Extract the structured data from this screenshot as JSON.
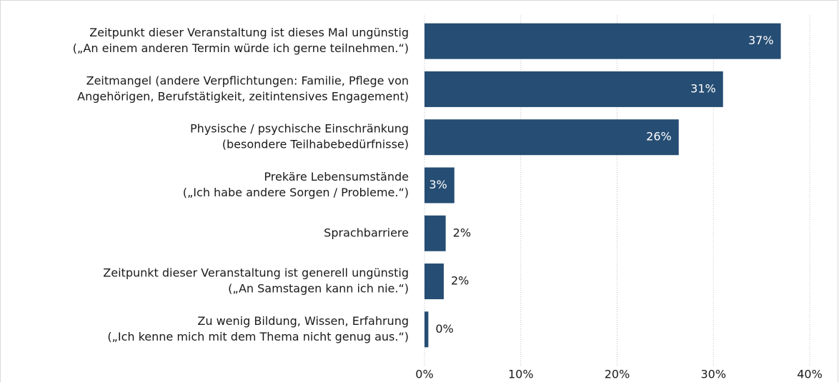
{
  "chart_data": {
    "type": "barh",
    "categories": [
      [
        "Zeitpunkt dieser Veranstaltung ist dieses Mal ungünstig",
        "(„An einem anderen Termin würde ich gerne teilnehmen.“)"
      ],
      [
        "Zeitmangel (andere Verpflichtungen: Familie, Pflege von",
        "Angehörigen, Berufstätigkeit, zeitintensives Engagement)"
      ],
      [
        "Physische / psychische Einschränkung",
        "(besondere Teilhabebedürfnisse)"
      ],
      [
        "Prekäre Lebensumstände",
        "(„Ich habe andere Sorgen / Probleme.“)"
      ],
      [
        "Sprachbarriere"
      ],
      [
        "Zeitpunkt dieser Veranstaltung ist generell ungünstig",
        "(„An Samstagen kann ich nie.“)"
      ],
      [
        "Zu wenig Bildung, Wissen, Erfahrung",
        "(„Ich kenne mich mit dem Thema nicht genug aus.“)"
      ]
    ],
    "values": [
      37,
      31,
      26.4,
      3.1,
      2.2,
      2.0,
      0.4
    ],
    "value_labels": [
      "37%",
      "31%",
      "26%",
      "3%",
      "2%",
      "2%",
      "0%"
    ],
    "color": "#264d73",
    "xlim": [
      0,
      40
    ],
    "xticks": [
      {
        "value": 0,
        "label": "0%"
      },
      {
        "value": 10,
        "label": "10%"
      },
      {
        "value": 20,
        "label": "20%"
      },
      {
        "value": 30,
        "label": "30%"
      },
      {
        "value": 40,
        "label": "40%"
      }
    ],
    "grid": true
  }
}
